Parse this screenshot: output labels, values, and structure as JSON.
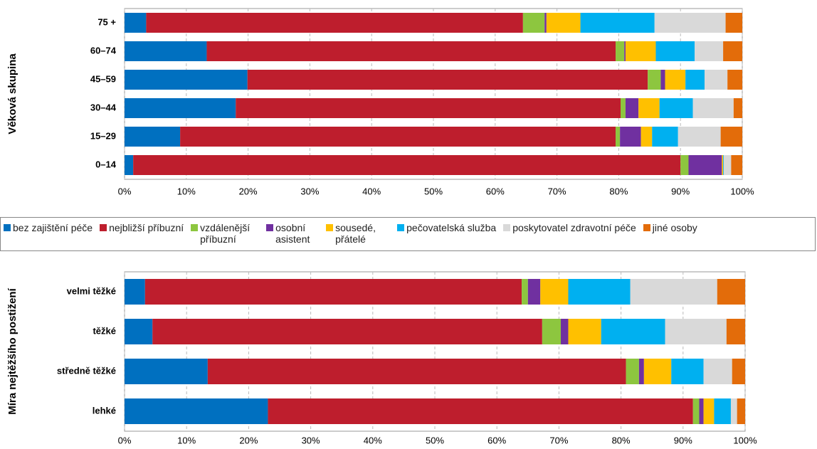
{
  "chart_data": [
    {
      "type": "stacked-bar-horizontal",
      "ylabel": "Věková skupina",
      "categories": [
        "75 +",
        "60–74",
        "45–59",
        "30–44",
        "15–29",
        "0–14"
      ],
      "series": [
        {
          "name": "bez zajištění péče",
          "color": "#0070c0",
          "values": [
            3.5,
            13.3,
            19.9,
            18,
            9,
            1.4
          ]
        },
        {
          "name": "nejbližší příbuzní",
          "color": "#be1e2d",
          "values": [
            61,
            66.2,
            64.8,
            62.3,
            70.5,
            88.6
          ]
        },
        {
          "name": "vzdálenější příbuzní",
          "color": "#8dc63f",
          "values": [
            3.5,
            1.4,
            2.1,
            0.8,
            0.7,
            1.3
          ]
        },
        {
          "name": "osobní asistent",
          "color": "#7030a0",
          "values": [
            0.3,
            0.2,
            0.7,
            2.1,
            3.4,
            5.4
          ]
        },
        {
          "name": "sousedé, přátelé",
          "color": "#ffc000",
          "values": [
            5.5,
            4.9,
            3.3,
            3.4,
            1.8,
            0.2
          ]
        },
        {
          "name": "pečovatelská služba",
          "color": "#00b0f0",
          "values": [
            12,
            6.3,
            3.1,
            5.4,
            4.2,
            0.1
          ]
        },
        {
          "name": "poskytovatel zdravotní péče",
          "color": "#d9d9d9",
          "values": [
            11.5,
            4.6,
            3.7,
            6.6,
            6.9,
            1.2
          ]
        },
        {
          "name": "jiné osoby",
          "color": "#e36c0a",
          "values": [
            2.7,
            3.1,
            2.4,
            1.4,
            3.5,
            1.8
          ]
        }
      ],
      "xlim": [
        0,
        100
      ],
      "xticks": [
        {
          "value": 0,
          "label": "0%"
        },
        {
          "value": 10,
          "label": "10%"
        },
        {
          "value": 20,
          "label": "20%"
        },
        {
          "value": 30,
          "label": "30%"
        },
        {
          "value": 40,
          "label": "40%"
        },
        {
          "value": 50,
          "label": "50%"
        },
        {
          "value": 60,
          "label": "60%"
        },
        {
          "value": 70,
          "label": "70%"
        },
        {
          "value": 80,
          "label": "80%"
        },
        {
          "value": 90,
          "label": "90%"
        },
        {
          "value": 100,
          "label": "100%"
        }
      ],
      "grid": true
    },
    {
      "type": "stacked-bar-horizontal",
      "ylabel": "Míra nejtěžšího postižení",
      "categories": [
        "velmi těžké",
        "těžké",
        "středně těžké",
        "lehké"
      ],
      "series": [
        {
          "name": "bez zajištění péče",
          "color": "#0070c0",
          "values": [
            3.3,
            4.5,
            13.4,
            23.1
          ]
        },
        {
          "name": "nejbližší příbuzní",
          "color": "#be1e2d",
          "values": [
            60.7,
            62.8,
            67.4,
            68.5
          ]
        },
        {
          "name": "vzdálenější příbuzní",
          "color": "#8dc63f",
          "values": [
            1,
            3,
            2.1,
            1
          ]
        },
        {
          "name": "osobní asistent",
          "color": "#7030a0",
          "values": [
            2,
            1.2,
            0.8,
            0.7
          ]
        },
        {
          "name": "sousedé, přátelé",
          "color": "#ffc000",
          "values": [
            4.5,
            5.3,
            4.4,
            1.7
          ]
        },
        {
          "name": "pečovatelská služba",
          "color": "#00b0f0",
          "values": [
            10,
            10.3,
            5.2,
            2.7
          ]
        },
        {
          "name": "poskytovatel zdravotní péče",
          "color": "#d9d9d9",
          "values": [
            14,
            9.9,
            4.6,
            1
          ]
        },
        {
          "name": "jiné osoby",
          "color": "#e36c0a",
          "values": [
            4.5,
            3,
            2.1,
            1.3
          ]
        }
      ],
      "xlim": [
        0,
        100
      ],
      "xticks": [
        {
          "value": 0,
          "label": "0%"
        },
        {
          "value": 10,
          "label": "10%"
        },
        {
          "value": 20,
          "label": "20%"
        },
        {
          "value": 30,
          "label": "30%"
        },
        {
          "value": 40,
          "label": "40%"
        },
        {
          "value": 50,
          "label": "50%"
        },
        {
          "value": 60,
          "label": "60%"
        },
        {
          "value": 70,
          "label": "70%"
        },
        {
          "value": 80,
          "label": "80%"
        },
        {
          "value": 90,
          "label": "90%"
        },
        {
          "value": 100,
          "label": "100%"
        }
      ],
      "grid": true
    }
  ]
}
